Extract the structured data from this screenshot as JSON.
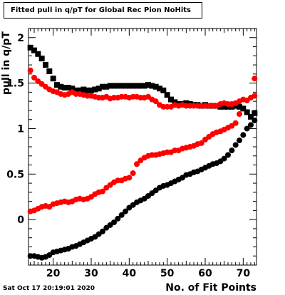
{
  "chart_data": {
    "type": "scatter",
    "title": "Fitted pull in q/pT for Global Rec Pion NoHits",
    "xlabel": "No. of Fit Points",
    "ylabel": "pull in q/pT",
    "xlim": [
      13.5,
      73.5
    ],
    "ylim": [
      -0.5,
      2.1
    ],
    "x_ticks": [
      20,
      30,
      40,
      50,
      60,
      70
    ],
    "y_ticks": [
      0,
      0.5,
      1,
      1.5,
      2
    ],
    "grid": false,
    "legend": "none",
    "series": [
      {
        "color": "#000000",
        "marker": "square",
        "x": [
          14,
          15,
          16,
          17,
          18,
          19,
          20,
          21,
          22,
          23,
          24,
          25,
          26,
          27,
          28,
          29,
          30,
          31,
          32,
          33,
          34,
          35,
          36,
          37,
          38,
          39,
          40,
          41,
          42,
          43,
          44,
          45,
          46,
          47,
          48,
          49,
          50,
          51,
          52,
          53,
          54,
          55,
          56,
          57,
          58,
          59,
          60,
          61,
          62,
          63,
          64,
          65,
          66,
          67,
          68,
          69,
          70,
          71,
          72,
          73
        ],
        "y": [
          1.89,
          1.86,
          1.82,
          1.77,
          1.7,
          1.63,
          1.55,
          1.48,
          1.46,
          1.45,
          1.45,
          1.44,
          1.42,
          1.42,
          1.43,
          1.42,
          1.42,
          1.43,
          1.44,
          1.46,
          1.46,
          1.47,
          1.47,
          1.47,
          1.47,
          1.47,
          1.47,
          1.47,
          1.47,
          1.47,
          1.47,
          1.48,
          1.47,
          1.46,
          1.44,
          1.42,
          1.37,
          1.32,
          1.29,
          1.27,
          1.27,
          1.28,
          1.27,
          1.26,
          1.26,
          1.25,
          1.26,
          1.25,
          1.25,
          1.25,
          1.24,
          1.24,
          1.24,
          1.24,
          1.25,
          1.24,
          1.22,
          1.18,
          1.13,
          1.17
        ]
      },
      {
        "color": "#ff0000",
        "marker": "circle",
        "x": [
          14,
          15,
          16,
          17,
          18,
          19,
          20,
          21,
          22,
          23,
          24,
          25,
          26,
          27,
          28,
          29,
          30,
          31,
          32,
          33,
          34,
          35,
          36,
          37,
          38,
          39,
          40,
          41,
          42,
          43,
          44,
          45,
          46,
          47,
          48,
          49,
          50,
          51,
          52,
          53,
          54,
          55,
          56,
          57,
          58,
          59,
          60,
          61,
          62,
          63,
          64,
          65,
          66,
          67,
          68,
          69,
          70,
          71,
          72,
          73
        ],
        "y": [
          1.64,
          1.56,
          1.52,
          1.49,
          1.46,
          1.43,
          1.41,
          1.4,
          1.38,
          1.37,
          1.38,
          1.4,
          1.38,
          1.38,
          1.37,
          1.36,
          1.36,
          1.35,
          1.34,
          1.34,
          1.35,
          1.33,
          1.34,
          1.34,
          1.35,
          1.35,
          1.34,
          1.35,
          1.35,
          1.34,
          1.34,
          1.35,
          1.32,
          1.3,
          1.26,
          1.24,
          1.24,
          1.24,
          1.26,
          1.25,
          1.26,
          1.25,
          1.25,
          1.25,
          1.25,
          1.25,
          1.25,
          1.25,
          1.25,
          1.25,
          1.27,
          1.28,
          1.27,
          1.27,
          1.28,
          1.3,
          1.32,
          1.31,
          1.34,
          1.36
        ]
      },
      {
        "color": "#000000",
        "marker": "circle",
        "x": [
          14,
          15,
          16,
          17,
          18,
          19,
          20,
          21,
          22,
          23,
          24,
          25,
          26,
          27,
          28,
          29,
          30,
          31,
          32,
          33,
          34,
          35,
          36,
          37,
          38,
          39,
          40,
          41,
          42,
          43,
          44,
          45,
          46,
          47,
          48,
          49,
          50,
          51,
          52,
          53,
          54,
          55,
          56,
          57,
          58,
          59,
          60,
          61,
          62,
          63,
          64,
          65,
          66,
          67,
          68,
          69,
          70,
          71,
          72,
          73
        ],
        "y": [
          -0.4,
          -0.4,
          -0.41,
          -0.42,
          -0.41,
          -0.39,
          -0.36,
          -0.35,
          -0.34,
          -0.33,
          -0.32,
          -0.3,
          -0.29,
          -0.27,
          -0.25,
          -0.23,
          -0.21,
          -0.19,
          -0.16,
          -0.13,
          -0.09,
          -0.06,
          -0.03,
          0.01,
          0.05,
          0.09,
          0.13,
          0.16,
          0.19,
          0.21,
          0.23,
          0.26,
          0.29,
          0.32,
          0.35,
          0.37,
          0.38,
          0.4,
          0.42,
          0.44,
          0.46,
          0.49,
          0.5,
          0.52,
          0.53,
          0.55,
          0.57,
          0.59,
          0.61,
          0.62,
          0.64,
          0.67,
          0.71,
          0.76,
          0.82,
          0.87,
          0.93,
          1.0,
          1.04,
          1.09
        ]
      },
      {
        "color": "#ff0000",
        "marker": "circle",
        "x": [
          14,
          15,
          16,
          17,
          18,
          19,
          20,
          21,
          22,
          23,
          24,
          25,
          26,
          27,
          28,
          29,
          30,
          31,
          32,
          33,
          34,
          35,
          36,
          37,
          38,
          39,
          40,
          41,
          42,
          43,
          44,
          45,
          46,
          47,
          48,
          49,
          50,
          51,
          52,
          53,
          54,
          55,
          56,
          57,
          58,
          59,
          60,
          61,
          62,
          63,
          64,
          65,
          66,
          67,
          68,
          69,
          70,
          71,
          72,
          73
        ],
        "y": [
          0.09,
          0.1,
          0.12,
          0.14,
          0.15,
          0.14,
          0.17,
          0.18,
          0.19,
          0.2,
          0.19,
          0.2,
          0.22,
          0.23,
          0.22,
          0.23,
          0.25,
          0.28,
          0.3,
          0.31,
          0.35,
          0.38,
          0.41,
          0.43,
          0.43,
          0.45,
          0.46,
          0.51,
          0.61,
          0.65,
          0.68,
          0.7,
          0.71,
          0.71,
          0.72,
          0.73,
          0.74,
          0.74,
          0.76,
          0.76,
          0.78,
          0.79,
          0.8,
          0.81,
          0.83,
          0.84,
          0.88,
          0.91,
          0.94,
          0.96,
          0.97,
          0.99,
          1.01,
          1.03,
          1.06,
          1.16,
          null,
          null,
          null,
          1.55
        ]
      }
    ]
  },
  "footer": {
    "timestamp": "Sat Oct 17 20:19:01 2020"
  }
}
